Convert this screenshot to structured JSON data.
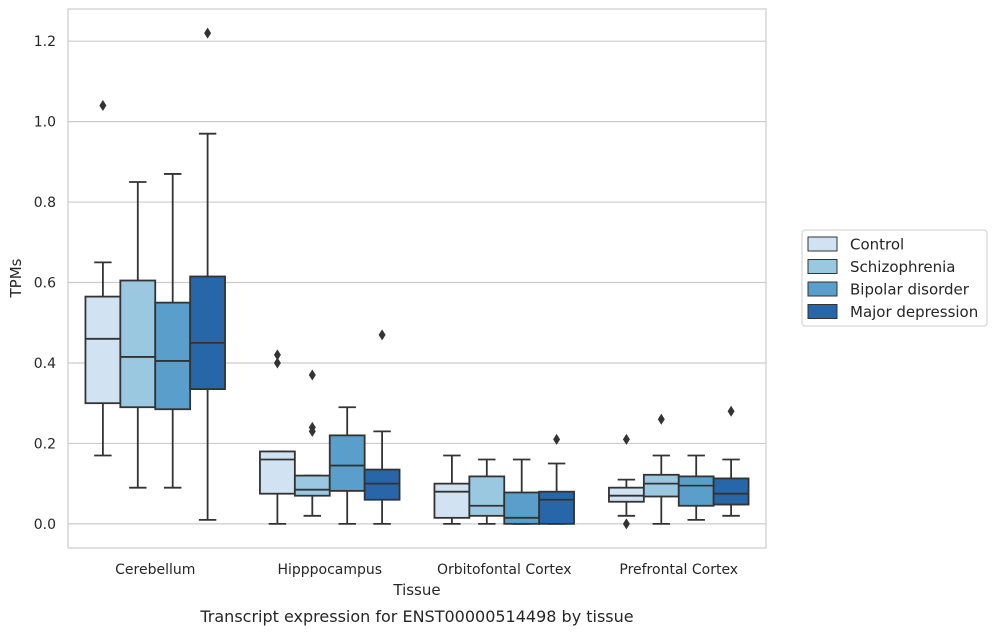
{
  "chart_data": {
    "type": "box",
    "caption": "Transcript expression for ENST00000514498 by tissue",
    "xlabel": "Tissue",
    "ylabel": "TPMs",
    "ylim": [
      -0.06,
      1.28
    ],
    "yticks": [
      0.0,
      0.2,
      0.4,
      0.6,
      0.8,
      1.0,
      1.2
    ],
    "ytick_labels": [
      "0.0",
      "0.2",
      "0.4",
      "0.6",
      "0.8",
      "1.0",
      "1.2"
    ],
    "grid": "horizontal",
    "legend_placement": "right",
    "categories": [
      "Cerebellum",
      "Hipppocampus",
      "Orbitofontal Cortex",
      "Prefrontal Cortex"
    ],
    "series": [
      {
        "name": "Control",
        "color": "#d1e3f3",
        "boxes": [
          {
            "whislo": 0.17,
            "q1": 0.3,
            "med": 0.46,
            "q3": 0.565,
            "whishi": 0.65,
            "fliers": [
              1.04
            ]
          },
          {
            "whislo": 0.0,
            "q1": 0.075,
            "med": 0.16,
            "q3": 0.18,
            "whishi": 0.18,
            "fliers": [
              0.4,
              0.42
            ]
          },
          {
            "whislo": 0.0,
            "q1": 0.015,
            "med": 0.08,
            "q3": 0.1,
            "whishi": 0.17,
            "fliers": []
          },
          {
            "whislo": 0.02,
            "q1": 0.055,
            "med": 0.07,
            "q3": 0.09,
            "whishi": 0.11,
            "fliers": [
              0.0,
              0.21
            ]
          }
        ]
      },
      {
        "name": "Schizophrenia",
        "color": "#9ac8e0",
        "boxes": [
          {
            "whislo": 0.09,
            "q1": 0.29,
            "med": 0.415,
            "q3": 0.605,
            "whishi": 0.85,
            "fliers": []
          },
          {
            "whislo": 0.02,
            "q1": 0.07,
            "med": 0.085,
            "q3": 0.12,
            "whishi": 0.12,
            "fliers": [
              0.23,
              0.24,
              0.37
            ]
          },
          {
            "whislo": 0.0,
            "q1": 0.02,
            "med": 0.045,
            "q3": 0.118,
            "whishi": 0.16,
            "fliers": []
          },
          {
            "whislo": 0.0,
            "q1": 0.068,
            "med": 0.1,
            "q3": 0.122,
            "whishi": 0.17,
            "fliers": [
              0.26
            ]
          }
        ]
      },
      {
        "name": "Bipolar disorder",
        "color": "#5a9fcb",
        "boxes": [
          {
            "whislo": 0.09,
            "q1": 0.285,
            "med": 0.405,
            "q3": 0.55,
            "whishi": 0.87,
            "fliers": []
          },
          {
            "whislo": 0.0,
            "q1": 0.082,
            "med": 0.145,
            "q3": 0.22,
            "whishi": 0.29,
            "fliers": []
          },
          {
            "whislo": 0.0,
            "q1": 0.0,
            "med": 0.015,
            "q3": 0.078,
            "whishi": 0.16,
            "fliers": []
          },
          {
            "whislo": 0.01,
            "q1": 0.045,
            "med": 0.095,
            "q3": 0.118,
            "whishi": 0.17,
            "fliers": []
          }
        ]
      },
      {
        "name": "Major depression",
        "color": "#2766a8",
        "boxes": [
          {
            "whislo": 0.01,
            "q1": 0.335,
            "med": 0.45,
            "q3": 0.615,
            "whishi": 0.97,
            "fliers": [
              1.22
            ]
          },
          {
            "whislo": 0.0,
            "q1": 0.06,
            "med": 0.1,
            "q3": 0.135,
            "whishi": 0.23,
            "fliers": [
              0.47
            ]
          },
          {
            "whislo": 0.0,
            "q1": 0.0,
            "med": 0.06,
            "q3": 0.08,
            "whishi": 0.15,
            "fliers": [
              0.21
            ]
          },
          {
            "whislo": 0.02,
            "q1": 0.048,
            "med": 0.075,
            "q3": 0.113,
            "whishi": 0.16,
            "fliers": [
              0.28
            ]
          }
        ]
      }
    ]
  }
}
